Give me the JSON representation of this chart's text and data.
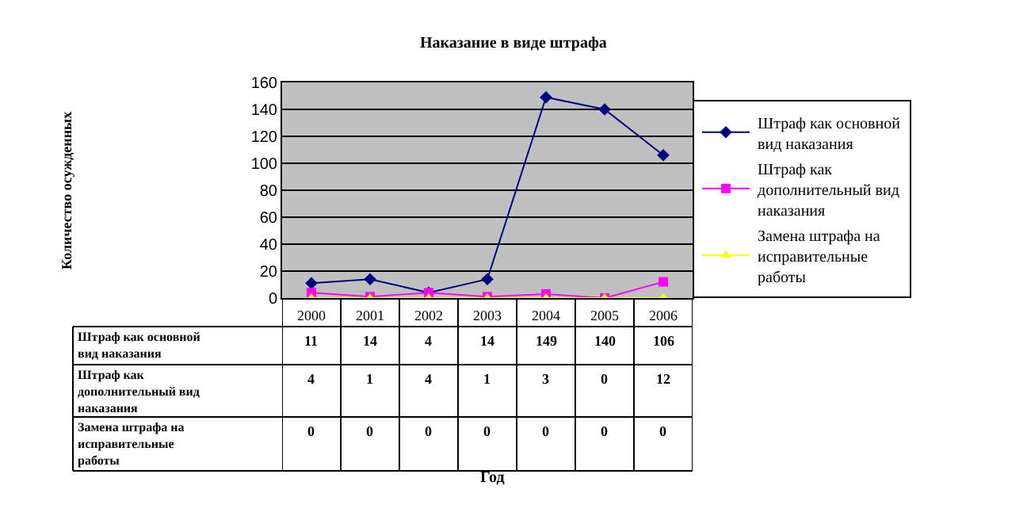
{
  "chart_data": {
    "type": "line",
    "title": "Наказание в виде штрафа",
    "annotations": [
      "Количество осужденных",
      "Год"
    ],
    "categories": [
      "2000",
      "2001",
      "2002",
      "2003",
      "2004",
      "2005",
      "2006"
    ],
    "series": [
      {
        "name": "Штраф как основной вид наказания",
        "color": "#000080",
        "marker": "diamond",
        "values": [
          11,
          14,
          4,
          14,
          149,
          140,
          106
        ]
      },
      {
        "name": "Штраф как дополнительный вид наказания",
        "color": "#ff00ff",
        "marker": "square",
        "values": [
          4,
          1,
          4,
          1,
          3,
          0,
          12
        ]
      },
      {
        "name": "Замена штрафа на исправительные работы",
        "color": "#ffff00",
        "marker": "triangle",
        "values": [
          0,
          0,
          0,
          0,
          0,
          0,
          0
        ]
      }
    ],
    "ylim": [
      0,
      160
    ],
    "yticks": [
      0,
      20,
      40,
      60,
      80,
      100,
      120,
      140,
      160
    ],
    "grid": "y",
    "legend": "right",
    "data_labels": true
  }
}
